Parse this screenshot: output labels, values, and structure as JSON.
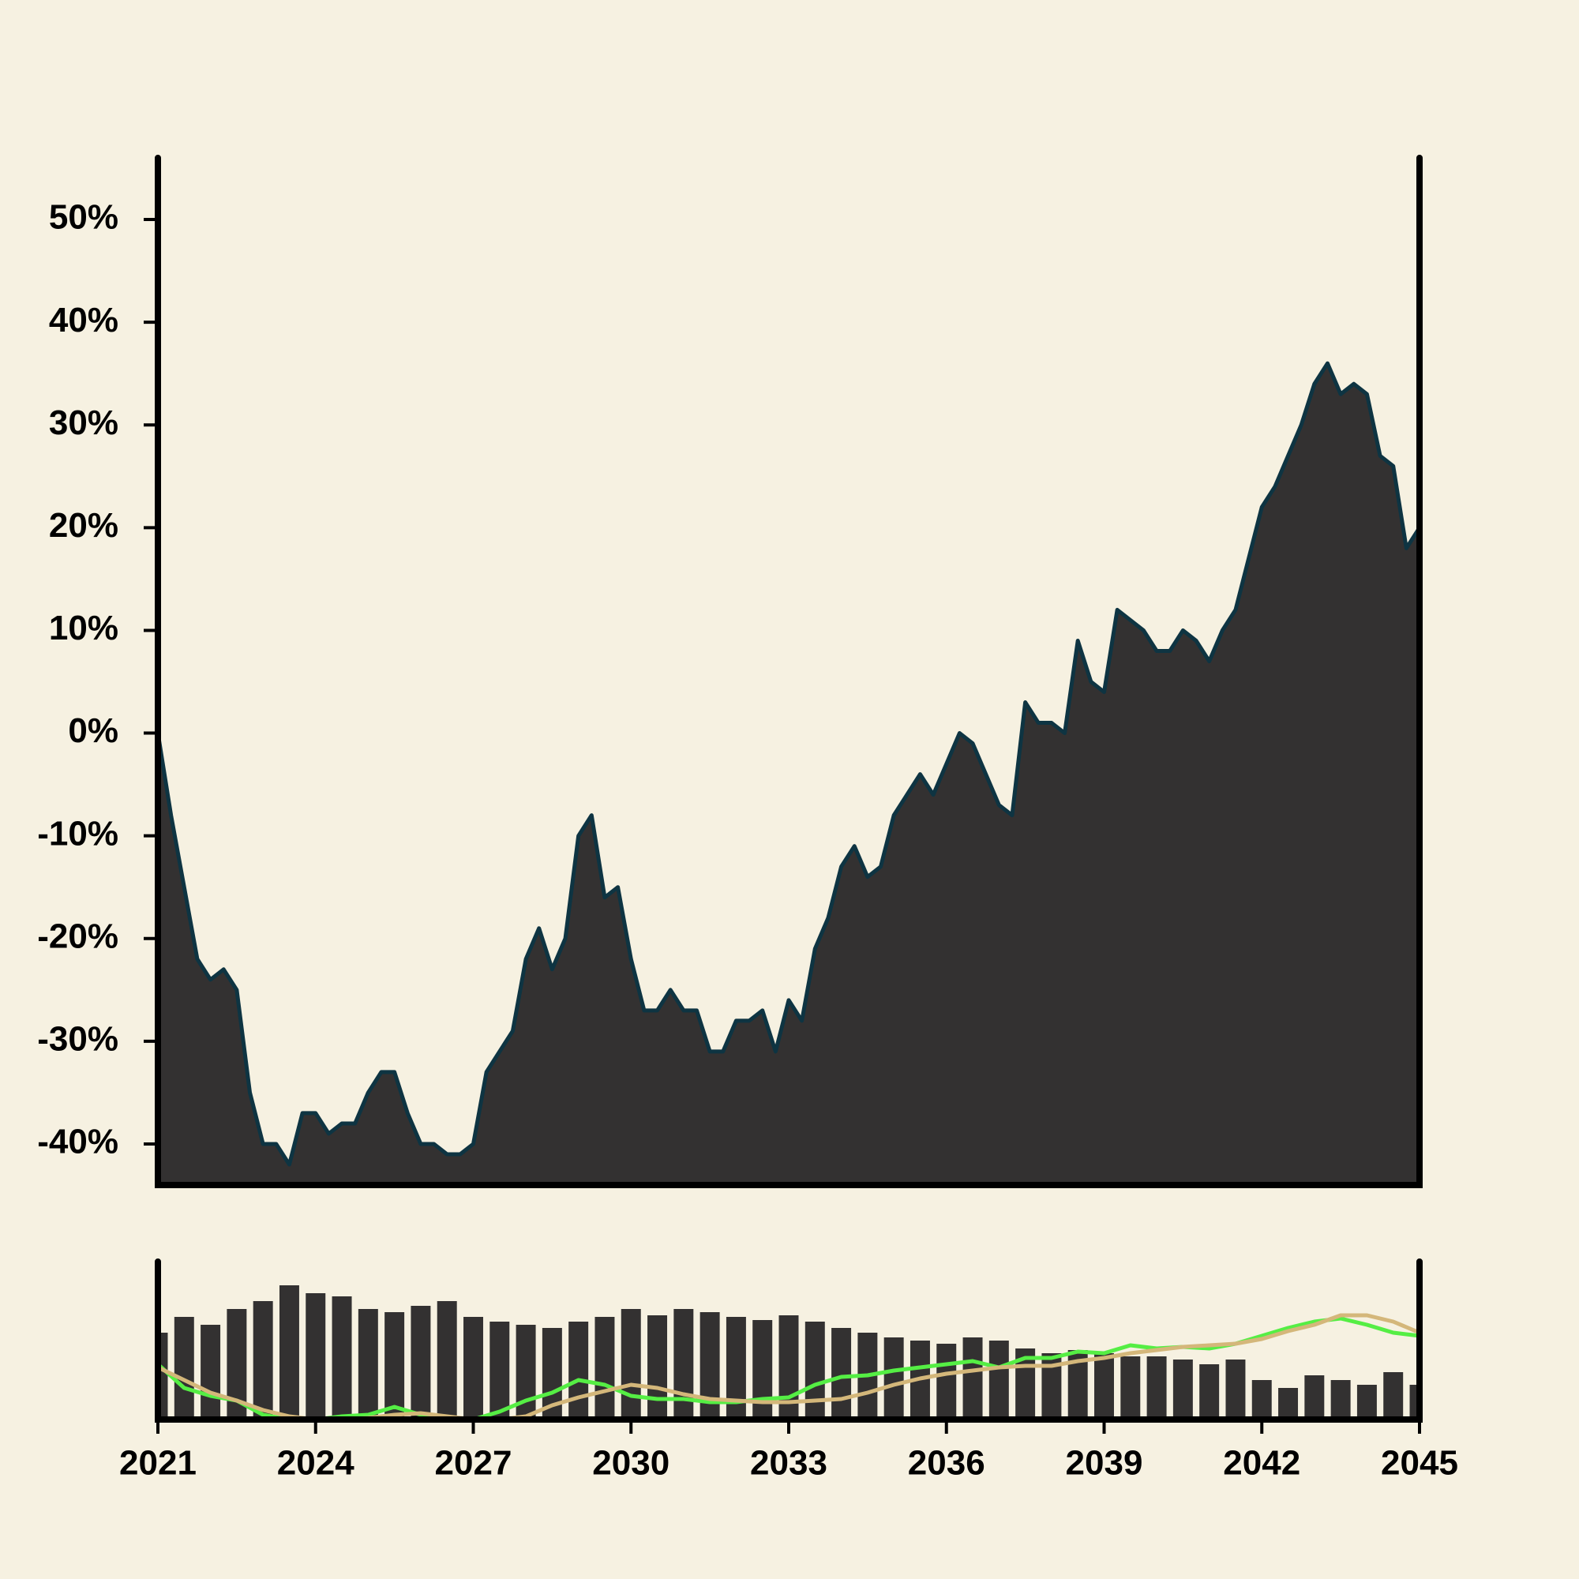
{
  "chart_data": [
    {
      "type": "area",
      "x": [
        2021,
        2021.25,
        2021.5,
        2021.75,
        2022,
        2022.25,
        2022.5,
        2022.75,
        2023,
        2023.25,
        2023.5,
        2023.75,
        2024,
        2024.25,
        2024.5,
        2024.75,
        2025,
        2025.25,
        2025.5,
        2025.75,
        2026,
        2026.25,
        2026.5,
        2026.75,
        2027,
        2027.25,
        2027.5,
        2027.75,
        2028,
        2028.25,
        2028.5,
        2028.75,
        2029,
        2029.25,
        2029.5,
        2029.75,
        2030,
        2030.25,
        2030.5,
        2030.75,
        2031,
        2031.25,
        2031.5,
        2031.75,
        2032,
        2032.25,
        2032.5,
        2032.75,
        2033,
        2033.25,
        2033.5,
        2033.75,
        2034,
        2034.25,
        2034.5,
        2034.75,
        2035,
        2035.25,
        2035.5,
        2035.75,
        2036,
        2036.25,
        2036.5,
        2036.75,
        2037,
        2037.25,
        2037.5,
        2037.75,
        2038,
        2038.25,
        2038.5,
        2038.75,
        2039,
        2039.25,
        2039.5,
        2039.75,
        2040,
        2040.25,
        2040.5,
        2040.75,
        2041,
        2041.25,
        2041.5,
        2041.75,
        2042,
        2042.25,
        2042.5,
        2042.75,
        2043,
        2043.25,
        2043.5,
        2043.75,
        2044,
        2044.25,
        2044.5,
        2044.75,
        2045
      ],
      "values": [
        0,
        -8,
        -15,
        -22,
        -24,
        -23,
        -25,
        -35,
        -40,
        -40,
        -42,
        -37,
        -37,
        -39,
        -38,
        -38,
        -35,
        -33,
        -33,
        -37,
        -40,
        -40,
        -41,
        -41,
        -40,
        -33,
        -31,
        -29,
        -22,
        -19,
        -23,
        -20,
        -10,
        -8,
        -16,
        -15,
        -22,
        -27,
        -27,
        -25,
        -27,
        -27,
        -31,
        -31,
        -28,
        -28,
        -27,
        -31,
        -26,
        -28,
        -21,
        -18,
        -13,
        -11,
        -14,
        -13,
        -8,
        -6,
        -4,
        -6,
        -3,
        0,
        -1,
        -4,
        -7,
        -8,
        3,
        1,
        1,
        0,
        9,
        5,
        4,
        12,
        11,
        10,
        8,
        8,
        10,
        9,
        7,
        10,
        12,
        17,
        22,
        24,
        27,
        30,
        34,
        36,
        33,
        34,
        33,
        27,
        26,
        18,
        20
      ],
      "color": "#333131",
      "line_color": "#0e3442",
      "xlim": [
        2021,
        2045
      ],
      "ylim": [
        -44,
        56
      ],
      "yticks": [
        {
          "value": -40,
          "label": "-40%"
        },
        {
          "value": -30,
          "label": "-30%"
        },
        {
          "value": -20,
          "label": "-20%"
        },
        {
          "value": -10,
          "label": "-10%"
        },
        {
          "value": 0,
          "label": "0%"
        },
        {
          "value": 10,
          "label": "10%"
        },
        {
          "value": 20,
          "label": "20%"
        },
        {
          "value": 30,
          "label": "30%"
        },
        {
          "value": 40,
          "label": "40%"
        },
        {
          "value": 50,
          "label": "50%"
        }
      ]
    },
    {
      "type": "bar",
      "x": [
        2021,
        2021.5,
        2022,
        2022.5,
        2023,
        2023.5,
        2024,
        2024.5,
        2025,
        2025.5,
        2026,
        2026.5,
        2027,
        2027.5,
        2028,
        2028.5,
        2029,
        2029.5,
        2030,
        2030.5,
        2031,
        2031.5,
        2032,
        2032.5,
        2033,
        2033.5,
        2034,
        2034.5,
        2035,
        2035.5,
        2036,
        2036.5,
        2037,
        2037.5,
        2038,
        2038.5,
        2039,
        2039.5,
        2040,
        2040.5,
        2041,
        2041.5,
        2042,
        2042.5,
        2043,
        2043.5,
        2044,
        2044.5,
        2045
      ],
      "values": [
        55,
        65,
        60,
        70,
        75,
        85,
        80,
        78,
        70,
        68,
        72,
        75,
        65,
        62,
        60,
        58,
        62,
        65,
        70,
        66,
        70,
        68,
        65,
        63,
        66,
        62,
        58,
        55,
        52,
        50,
        48,
        52,
        50,
        45,
        42,
        44,
        42,
        40,
        40,
        38,
        35,
        38,
        25,
        20,
        28,
        25,
        22,
        30,
        22
      ],
      "color": "#333131",
      "series": [
        {
          "color": "#55ee44",
          "values": [
            35,
            20,
            15,
            12,
            3,
            0,
            0,
            2,
            3,
            8,
            3,
            0,
            0,
            5,
            12,
            17,
            25,
            22,
            15,
            13,
            13,
            11,
            11,
            13,
            14,
            22,
            27,
            28,
            31,
            33,
            35,
            37,
            33,
            39,
            39,
            43,
            42,
            47,
            45,
            46,
            45,
            48,
            53,
            58,
            62,
            64,
            60,
            55,
            53
          ]
        },
        {
          "color": "#d4b77a",
          "values": [
            33,
            25,
            17,
            12,
            6,
            2,
            0,
            0,
            1,
            3,
            4,
            2,
            0,
            0,
            2,
            9,
            14,
            18,
            22,
            20,
            16,
            13,
            12,
            11,
            11,
            12,
            13,
            17,
            22,
            26,
            29,
            31,
            33,
            34,
            34,
            37,
            39,
            42,
            44,
            46,
            47,
            48,
            51,
            56,
            60,
            66,
            66,
            62,
            55
          ]
        }
      ],
      "xlim": [
        2021,
        2045
      ],
      "ylim": [
        0,
        100
      ],
      "xticks": [
        2021,
        2024,
        2027,
        2030,
        2033,
        2036,
        2039,
        2042,
        2045
      ]
    }
  ]
}
